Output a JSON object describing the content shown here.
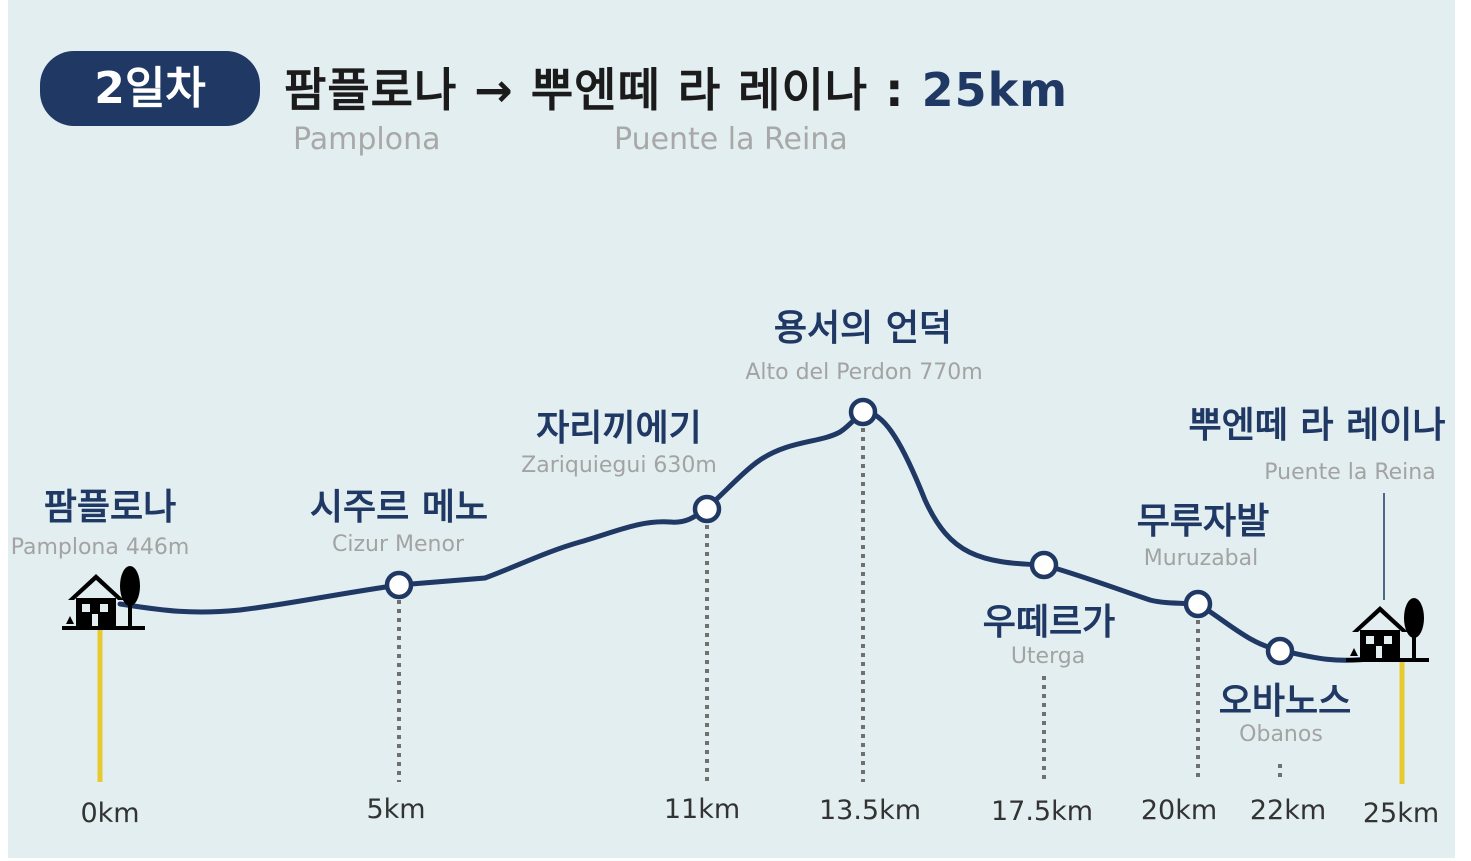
{
  "header": {
    "day_badge": "2일차",
    "route_from": "팜플로나",
    "route_arrow": "→",
    "route_to": "뿌엔떼 라 레이나",
    "route_sep": ":",
    "route_distance": "25km",
    "from_en": "Pamplona",
    "to_en": "Puente la Reina"
  },
  "colors": {
    "route": "#1f3864",
    "panel": "#e3eef1",
    "start_end_marker": "#e8c930",
    "subtitle": "#a8a8a8"
  },
  "stops": [
    {
      "id": "pamplona",
      "name_ko": "팜플로나",
      "name_en": "Pamplona 446m",
      "distance": "0km",
      "km": 0,
      "kind": "town",
      "icon": "house-icon"
    },
    {
      "id": "cizur",
      "name_ko": "시주르 메노",
      "name_en": "Cizur Menor",
      "distance": "5km",
      "km": 5,
      "kind": "waypoint"
    },
    {
      "id": "zariquiegui",
      "name_ko": "자리끼에기",
      "name_en": "Zariquiegui 630m",
      "distance": "11km",
      "km": 11,
      "kind": "waypoint"
    },
    {
      "id": "perdon",
      "name_ko": "용서의 언덕",
      "name_en": "Alto del Perdon 770m",
      "distance": "13.5km",
      "km": 13.5,
      "kind": "waypoint"
    },
    {
      "id": "uterga",
      "name_ko": "우떼르가",
      "name_en": "Uterga",
      "distance": "17.5km",
      "km": 17.5,
      "kind": "waypoint"
    },
    {
      "id": "muruzabal",
      "name_ko": "무루자발",
      "name_en": "Muruzabal",
      "distance": "20km",
      "km": 20,
      "kind": "waypoint"
    },
    {
      "id": "obanos",
      "name_ko": "오바노스",
      "name_en": "Obanos",
      "distance": "22km",
      "km": 22,
      "kind": "waypoint"
    },
    {
      "id": "puente",
      "name_ko": "뿌엔떼 라 레이나",
      "name_en": "Puente la Reina",
      "distance": "25km",
      "km": 25,
      "kind": "town",
      "icon": "house-icon"
    }
  ]
}
